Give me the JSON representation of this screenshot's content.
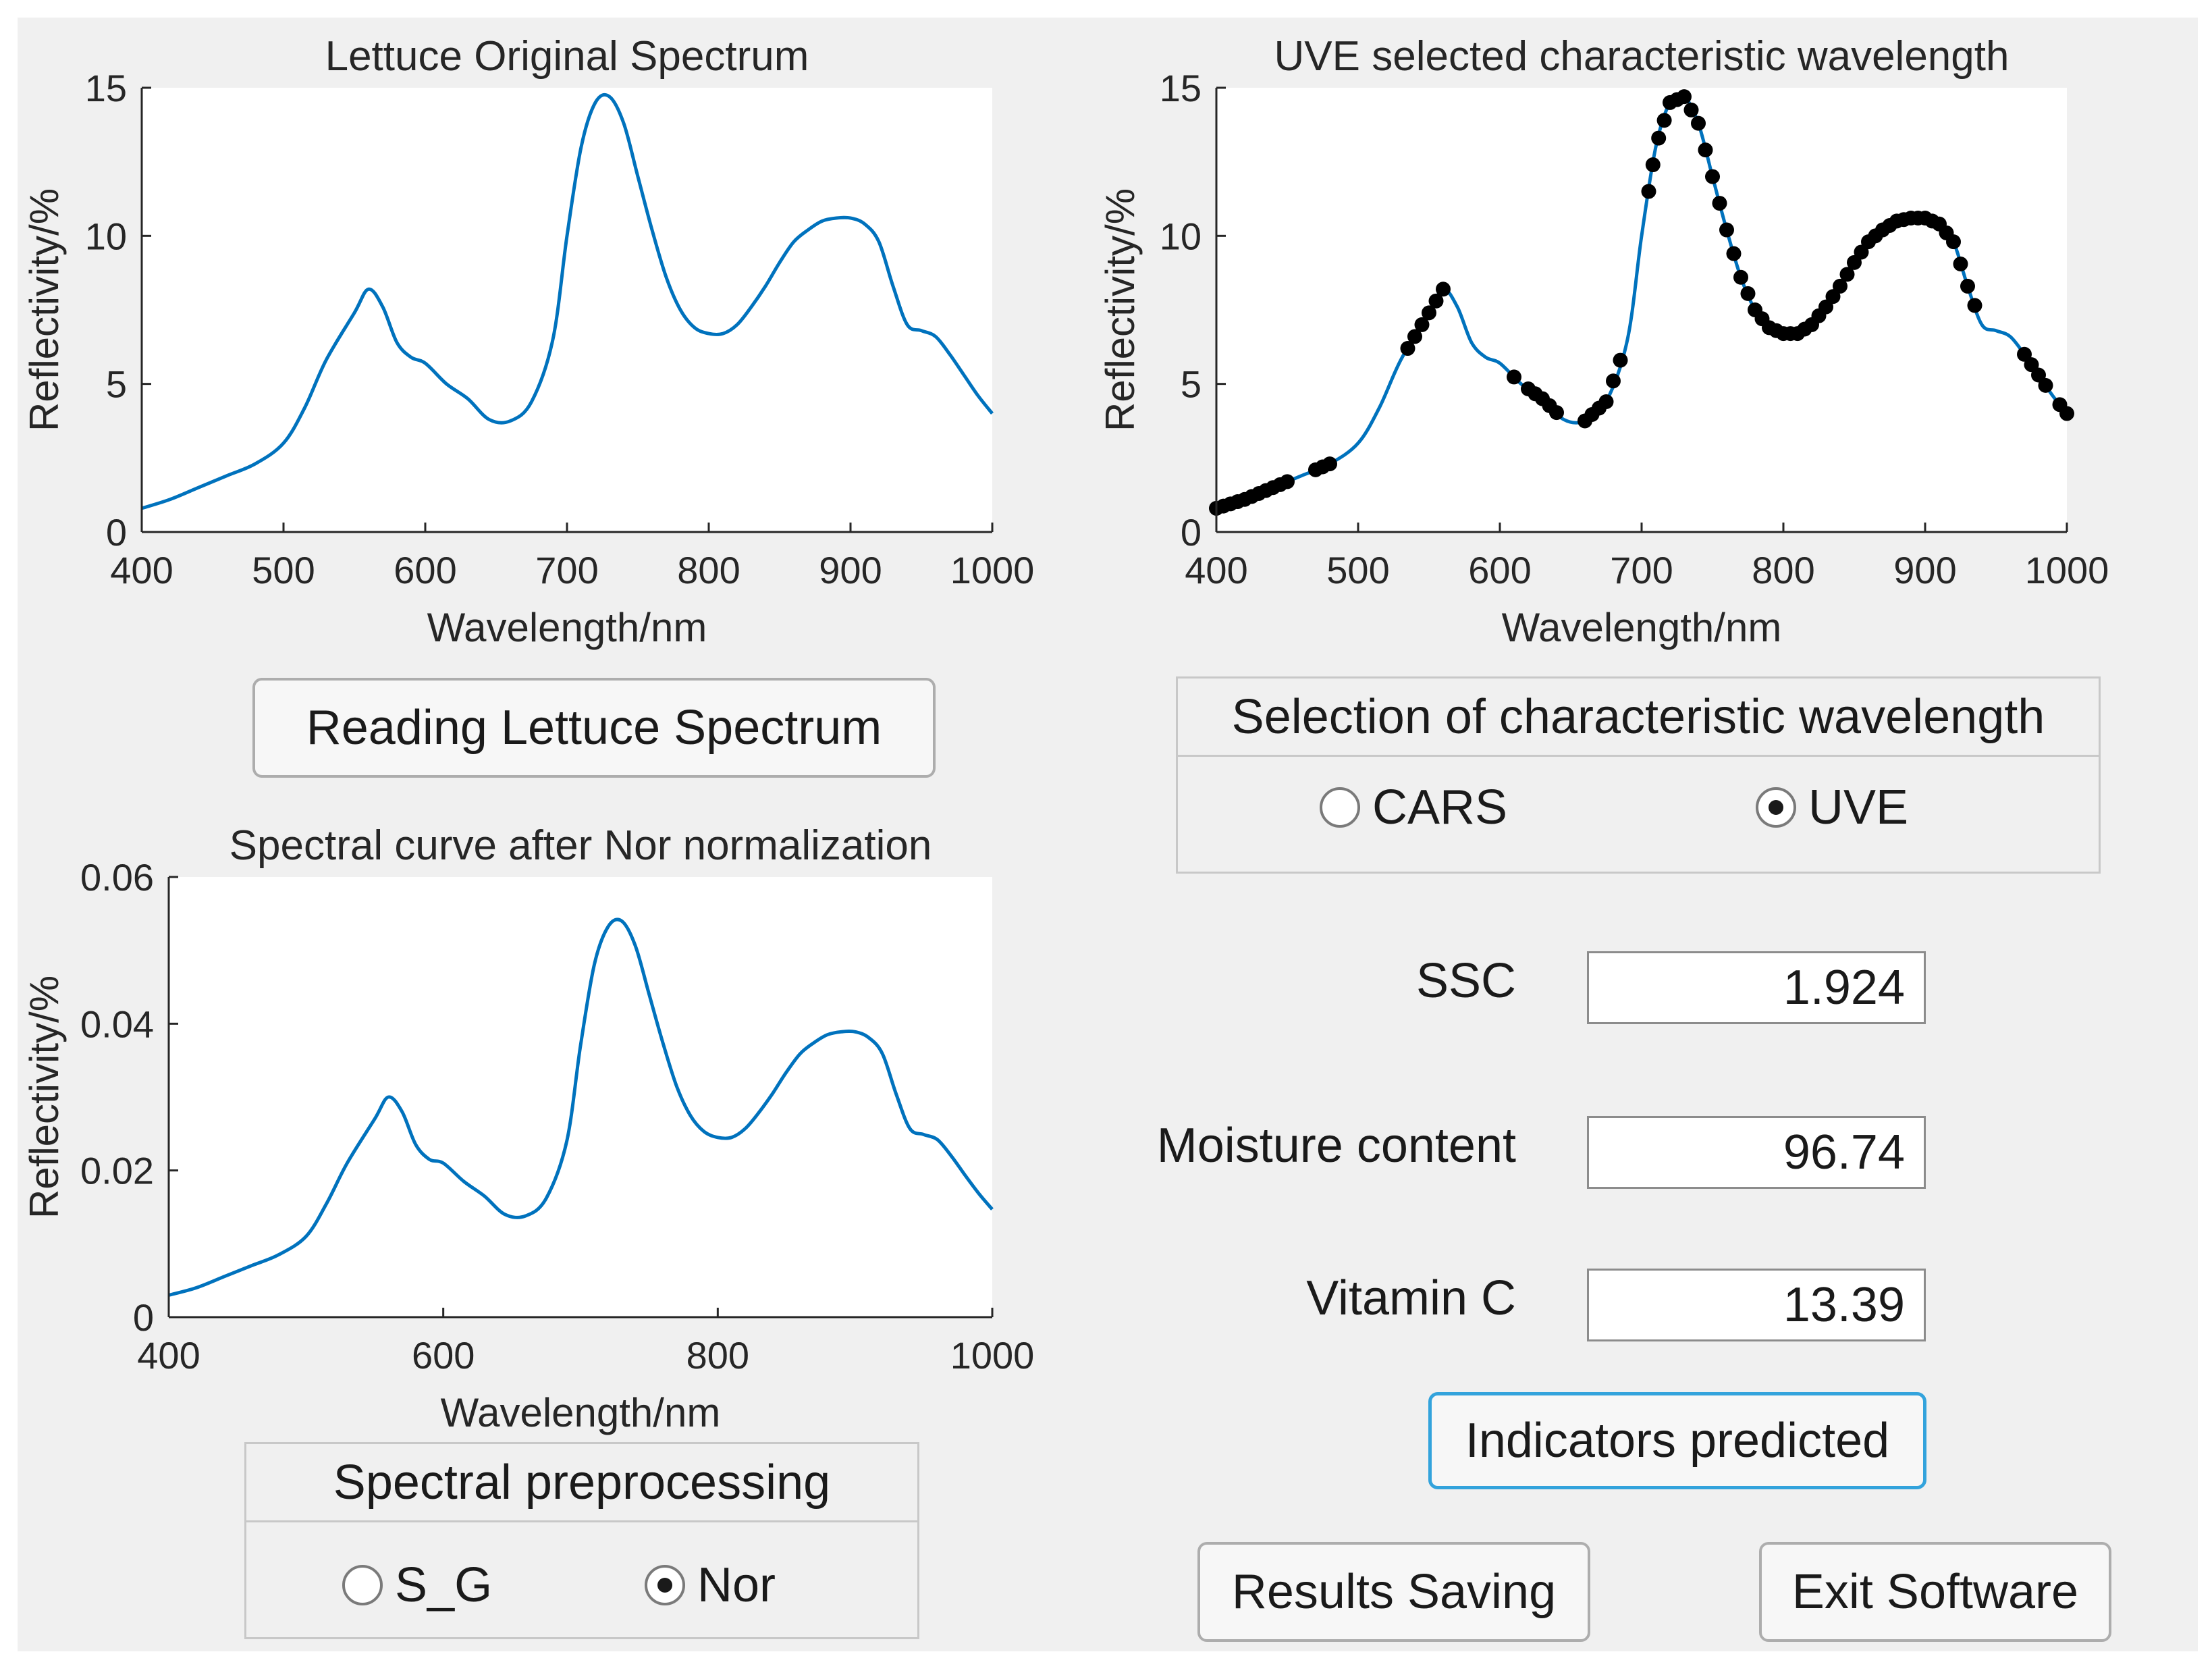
{
  "colors": {
    "panel_bg": "#f0f0f0",
    "line": "#0072bd",
    "marker": "#000000",
    "focus_border": "#33a3dc"
  },
  "chart_data": [
    {
      "id": "original",
      "type": "line",
      "title": "Lettuce Original Spectrum",
      "xlabel": "Wavelength/nm",
      "ylabel": "Reflectivity/%",
      "xlim": [
        400,
        1000
      ],
      "ylim": [
        0,
        15
      ],
      "xticks": [
        400,
        500,
        600,
        700,
        800,
        900,
        1000
      ],
      "yticks": [
        0,
        5,
        10,
        15
      ],
      "grid": false,
      "x": [
        400,
        420,
        440,
        460,
        480,
        500,
        515,
        530,
        550,
        560,
        570,
        580,
        590,
        600,
        615,
        630,
        645,
        660,
        675,
        690,
        700,
        710,
        720,
        730,
        740,
        750,
        760,
        770,
        780,
        790,
        800,
        810,
        820,
        830,
        840,
        850,
        860,
        870,
        880,
        890,
        900,
        910,
        920,
        930,
        940,
        950,
        960,
        970,
        980,
        990,
        1000
      ],
      "values": [
        0.8,
        1.1,
        1.5,
        1.9,
        2.3,
        3.0,
        4.2,
        5.8,
        7.4,
        8.2,
        7.6,
        6.4,
        5.9,
        5.7,
        5.0,
        4.5,
        3.8,
        3.75,
        4.4,
        6.5,
        10.0,
        13.0,
        14.5,
        14.7,
        13.8,
        12.0,
        10.2,
        8.6,
        7.5,
        6.9,
        6.7,
        6.7,
        7.0,
        7.6,
        8.3,
        9.1,
        9.8,
        10.2,
        10.5,
        10.6,
        10.6,
        10.4,
        9.8,
        8.3,
        7.0,
        6.8,
        6.6,
        6.0,
        5.3,
        4.6,
        4.0
      ]
    },
    {
      "id": "uve",
      "type": "line",
      "title": "UVE selected characteristic wavelength",
      "xlabel": "Wavelength/nm",
      "ylabel": "Reflectivity/%",
      "xlim": [
        400,
        1000
      ],
      "ylim": [
        0,
        15
      ],
      "xticks": [
        400,
        500,
        600,
        700,
        800,
        900,
        1000
      ],
      "yticks": [
        0,
        5,
        10,
        15
      ],
      "grid": false,
      "x": [
        400,
        420,
        440,
        460,
        480,
        500,
        515,
        530,
        550,
        560,
        570,
        580,
        590,
        600,
        615,
        630,
        645,
        660,
        675,
        690,
        700,
        710,
        720,
        730,
        740,
        750,
        760,
        770,
        780,
        790,
        800,
        810,
        820,
        830,
        840,
        850,
        860,
        870,
        880,
        890,
        900,
        910,
        920,
        930,
        940,
        950,
        960,
        970,
        980,
        990,
        1000
      ],
      "values": [
        0.8,
        1.1,
        1.5,
        1.9,
        2.3,
        3.0,
        4.2,
        5.8,
        7.4,
        8.2,
        7.6,
        6.4,
        5.9,
        5.7,
        5.0,
        4.5,
        3.8,
        3.75,
        4.4,
        6.5,
        10.0,
        13.0,
        14.5,
        14.7,
        13.8,
        12.0,
        10.2,
        8.6,
        7.5,
        6.9,
        6.7,
        6.7,
        7.0,
        7.6,
        8.3,
        9.1,
        9.8,
        10.2,
        10.5,
        10.6,
        10.6,
        10.4,
        9.8,
        8.3,
        7.0,
        6.8,
        6.6,
        6.0,
        5.3,
        4.6,
        4.0
      ],
      "selected_x": [
        400,
        405,
        410,
        415,
        420,
        425,
        430,
        435,
        440,
        445,
        450,
        470,
        475,
        480,
        535,
        540,
        545,
        550,
        555,
        560,
        610,
        620,
        625,
        630,
        635,
        640,
        660,
        665,
        670,
        675,
        680,
        685,
        705,
        708,
        712,
        716,
        720,
        725,
        730,
        735,
        740,
        745,
        750,
        755,
        760,
        765,
        770,
        775,
        780,
        785,
        790,
        795,
        800,
        805,
        810,
        815,
        820,
        825,
        830,
        835,
        840,
        845,
        850,
        855,
        860,
        865,
        870,
        875,
        880,
        885,
        890,
        895,
        900,
        905,
        910,
        915,
        920,
        925,
        930,
        935,
        970,
        975,
        980,
        985,
        995,
        1000
      ]
    },
    {
      "id": "normalized",
      "type": "line",
      "title": "Spectral curve after Nor normalization",
      "xlabel": "Wavelength/nm",
      "ylabel": "Reflectivity/%",
      "xlim": [
        400,
        1000
      ],
      "ylim": [
        0,
        0.06
      ],
      "xticks": [
        400,
        600,
        800,
        1000
      ],
      "xtick_labels": [
        "400",
        "600",
        "800",
        "1000"
      ],
      "yticks": [
        0,
        0.02,
        0.04,
        0.06
      ],
      "ytick_labels": [
        "0",
        "0.02",
        "0.04",
        "0.06"
      ],
      "grid": false,
      "x": [
        400,
        420,
        440,
        460,
        480,
        500,
        515,
        530,
        550,
        560,
        570,
        580,
        590,
        600,
        615,
        630,
        645,
        660,
        675,
        690,
        700,
        710,
        720,
        730,
        740,
        750,
        760,
        770,
        780,
        790,
        800,
        810,
        820,
        830,
        840,
        850,
        860,
        870,
        880,
        890,
        900,
        910,
        920,
        930,
        940,
        950,
        960,
        970,
        980,
        990,
        1000
      ],
      "values": [
        0.003,
        0.004,
        0.0055,
        0.007,
        0.0085,
        0.011,
        0.0155,
        0.021,
        0.027,
        0.03,
        0.028,
        0.0235,
        0.0215,
        0.021,
        0.0185,
        0.0165,
        0.014,
        0.0138,
        0.0162,
        0.024,
        0.037,
        0.048,
        0.0532,
        0.054,
        0.0506,
        0.044,
        0.0374,
        0.0315,
        0.0275,
        0.0253,
        0.0245,
        0.0245,
        0.0257,
        0.0279,
        0.0305,
        0.0334,
        0.0359,
        0.0374,
        0.0385,
        0.0389,
        0.0389,
        0.0381,
        0.0359,
        0.0304,
        0.0257,
        0.0249,
        0.0242,
        0.022,
        0.0194,
        0.0169,
        0.0147
      ]
    }
  ],
  "buttons": {
    "read": "Reading Lettuce Spectrum",
    "predict": "Indicators predicted",
    "save": "Results Saving",
    "exit": "Exit Software"
  },
  "wavelength_group": {
    "title": "Selection of characteristic wavelength",
    "options": [
      {
        "label": "CARS",
        "selected": false
      },
      {
        "label": "UVE",
        "selected": true
      }
    ]
  },
  "preprocess_group": {
    "title": "Spectral preprocessing",
    "options": [
      {
        "label": "S_G",
        "selected": false
      },
      {
        "label": "Nor",
        "selected": true
      }
    ]
  },
  "indicators": [
    {
      "label": "SSC",
      "value": "1.924"
    },
    {
      "label": "Moisture content",
      "value": "96.74"
    },
    {
      "label": "Vitamin C",
      "value": "13.39"
    }
  ]
}
